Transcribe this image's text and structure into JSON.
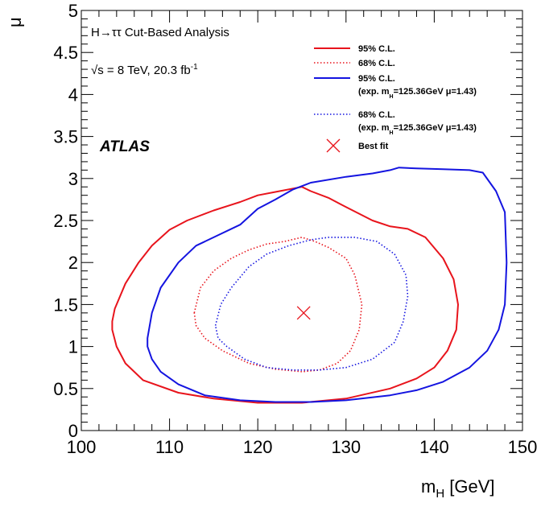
{
  "chart_data": {
    "type": "line",
    "title": "",
    "xlabel": "m",
    "xlabel_sub": "H",
    "xlabel_unit": " [GeV]",
    "ylabel": "μ",
    "xlim": [
      100,
      150
    ],
    "ylim": [
      0,
      5
    ],
    "x_ticks": [
      "100",
      "110",
      "120",
      "130",
      "140",
      "150"
    ],
    "y_ticks": [
      "0",
      "0.5",
      "1",
      "1.5",
      "2",
      "2.5",
      "3",
      "3.5",
      "4",
      "4.5",
      "5"
    ],
    "annotations": {
      "analysis": "H→ττ Cut-Based Analysis",
      "energy_sqrt": "√s",
      "energy": " = 8 TeV, 20.3 fb",
      "energy_sup": "-1",
      "experiment": "ATLAS"
    },
    "legend": [
      {
        "label": "95% C.L.",
        "line1": "",
        "sub": "",
        "line1_end": "",
        "color": "#e8141c",
        "style": "solid"
      },
      {
        "label": "68% C.L.",
        "line1": "",
        "sub": "",
        "line1_end": "",
        "color": "#e8141c",
        "style": "dotted"
      },
      {
        "label": "95% C.L.",
        "line1": "(exp. m",
        "sub": "H",
        "line1_end": "=125.36GeV  μ=1.43)",
        "color": "#1414e0",
        "style": "solid"
      },
      {
        "label": "68% C.L.",
        "line1": "(exp. m",
        "sub": "H",
        "line1_end": "=125.36GeV  μ=1.43)",
        "color": "#1414e0",
        "style": "dotted"
      },
      {
        "label": "Best fit",
        "line1": "",
        "sub": "",
        "line1_end": "",
        "color": "#e8141c",
        "style": "marker"
      }
    ],
    "best_fit": {
      "x": 125.2,
      "y": 1.4
    },
    "series": [
      {
        "legend_index": 0,
        "color": "#e8141c",
        "style": "solid",
        "points": [
          [
            103.5,
            1.3
          ],
          [
            103.8,
            1.45
          ],
          [
            105,
            1.75
          ],
          [
            106.5,
            2.0
          ],
          [
            108,
            2.2
          ],
          [
            110,
            2.39
          ],
          [
            112,
            2.5
          ],
          [
            115,
            2.62
          ],
          [
            118,
            2.72
          ],
          [
            120,
            2.8
          ],
          [
            122,
            2.84
          ],
          [
            125,
            2.9
          ],
          [
            126,
            2.85
          ],
          [
            128,
            2.77
          ],
          [
            130,
            2.66
          ],
          [
            133,
            2.5
          ],
          [
            135,
            2.43
          ],
          [
            137,
            2.4
          ],
          [
            139,
            2.3
          ],
          [
            141,
            2.05
          ],
          [
            142.2,
            1.8
          ],
          [
            142.7,
            1.5
          ],
          [
            142.5,
            1.2
          ],
          [
            141.5,
            0.95
          ],
          [
            140,
            0.75
          ],
          [
            138,
            0.62
          ],
          [
            135,
            0.5
          ],
          [
            130,
            0.38
          ],
          [
            125,
            0.33
          ],
          [
            120,
            0.33
          ],
          [
            115,
            0.38
          ],
          [
            111,
            0.45
          ],
          [
            107,
            0.6
          ],
          [
            105,
            0.8
          ],
          [
            104,
            1.0
          ],
          [
            103.5,
            1.2
          ],
          [
            103.5,
            1.3
          ]
        ]
      },
      {
        "legend_index": 1,
        "color": "#e8141c",
        "style": "dotted",
        "points": [
          [
            112.8,
            1.4
          ],
          [
            113.5,
            1.7
          ],
          [
            115,
            1.9
          ],
          [
            117,
            2.05
          ],
          [
            119,
            2.15
          ],
          [
            121,
            2.22
          ],
          [
            123,
            2.25
          ],
          [
            125,
            2.3
          ],
          [
            126.5,
            2.25
          ],
          [
            128,
            2.18
          ],
          [
            130,
            2.05
          ],
          [
            131,
            1.85
          ],
          [
            131.8,
            1.5
          ],
          [
            131.5,
            1.2
          ],
          [
            130.5,
            0.95
          ],
          [
            129,
            0.8
          ],
          [
            127,
            0.72
          ],
          [
            125,
            0.7
          ],
          [
            122,
            0.73
          ],
          [
            119,
            0.8
          ],
          [
            116,
            0.95
          ],
          [
            114,
            1.1
          ],
          [
            113,
            1.25
          ],
          [
            112.8,
            1.4
          ]
        ]
      },
      {
        "legend_index": 2,
        "color": "#1414e0",
        "style": "solid",
        "points": [
          [
            107.5,
            1.1
          ],
          [
            108,
            1.4
          ],
          [
            109,
            1.7
          ],
          [
            111,
            2.0
          ],
          [
            113,
            2.2
          ],
          [
            115,
            2.3
          ],
          [
            118,
            2.45
          ],
          [
            120,
            2.64
          ],
          [
            122,
            2.75
          ],
          [
            124,
            2.87
          ],
          [
            126,
            2.95
          ],
          [
            130,
            3.02
          ],
          [
            133,
            3.06
          ],
          [
            135,
            3.1
          ],
          [
            136,
            3.13
          ],
          [
            138,
            3.12
          ],
          [
            141,
            3.11
          ],
          [
            144,
            3.1
          ],
          [
            145.5,
            3.07
          ],
          [
            147,
            2.85
          ],
          [
            148,
            2.6
          ],
          [
            148.2,
            2.0
          ],
          [
            148,
            1.5
          ],
          [
            147.3,
            1.2
          ],
          [
            146,
            0.95
          ],
          [
            144,
            0.75
          ],
          [
            141,
            0.58
          ],
          [
            138,
            0.48
          ],
          [
            135,
            0.42
          ],
          [
            130,
            0.36
          ],
          [
            126,
            0.34
          ],
          [
            122,
            0.34
          ],
          [
            118,
            0.36
          ],
          [
            114,
            0.42
          ],
          [
            111,
            0.55
          ],
          [
            109,
            0.7
          ],
          [
            108,
            0.85
          ],
          [
            107.5,
            1.0
          ],
          [
            107.5,
            1.1
          ]
        ]
      },
      {
        "legend_index": 3,
        "color": "#1414e0",
        "style": "dotted",
        "points": [
          [
            115.2,
            1.25
          ],
          [
            115.8,
            1.5
          ],
          [
            117,
            1.7
          ],
          [
            119,
            1.95
          ],
          [
            121,
            2.1
          ],
          [
            123.5,
            2.2
          ],
          [
            126,
            2.27
          ],
          [
            128,
            2.3
          ],
          [
            131,
            2.3
          ],
          [
            133.5,
            2.25
          ],
          [
            135.5,
            2.1
          ],
          [
            136.8,
            1.85
          ],
          [
            137,
            1.6
          ],
          [
            136.5,
            1.3
          ],
          [
            135.5,
            1.05
          ],
          [
            133,
            0.85
          ],
          [
            130,
            0.75
          ],
          [
            127,
            0.72
          ],
          [
            124,
            0.72
          ],
          [
            121,
            0.75
          ],
          [
            118.5,
            0.85
          ],
          [
            116.5,
            1.0
          ],
          [
            115.5,
            1.1
          ],
          [
            115.2,
            1.25
          ]
        ]
      }
    ]
  }
}
